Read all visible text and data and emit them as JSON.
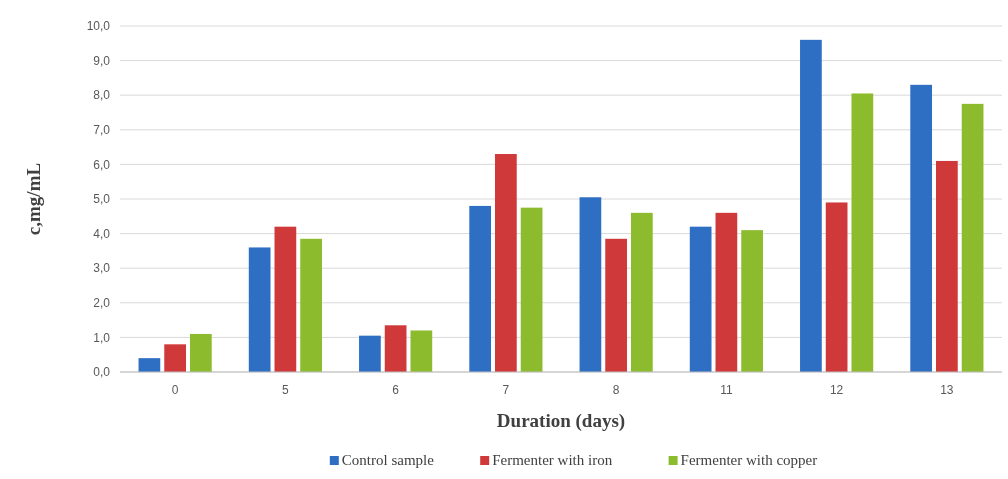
{
  "chart_data": {
    "type": "bar",
    "xlabel": "Duration (days)",
    "ylabel": "c,mg/mL",
    "categories": [
      "0",
      "5",
      "6",
      "7",
      "8",
      "11",
      "12",
      "13"
    ],
    "series": [
      {
        "name": "Control sample",
        "color": "#2e6fc4",
        "values": [
          0.4,
          3.6,
          1.05,
          4.8,
          5.05,
          4.2,
          9.6,
          8.3
        ]
      },
      {
        "name": "Fermenter with iron",
        "color": "#d0393a",
        "values": [
          0.8,
          4.2,
          1.35,
          6.3,
          3.85,
          4.6,
          4.9,
          6.1
        ]
      },
      {
        "name": "Fermenter with copper",
        "color": "#8dbb2e",
        "values": [
          1.1,
          3.85,
          1.2,
          4.75,
          4.6,
          4.1,
          8.05,
          7.75
        ]
      }
    ],
    "ylim": [
      0,
      10
    ],
    "yticks": [
      {
        "value": 0,
        "label": "0,0"
      },
      {
        "value": 1,
        "label": "1,0"
      },
      {
        "value": 2,
        "label": "2,0"
      },
      {
        "value": 3,
        "label": "3,0"
      },
      {
        "value": 4,
        "label": "4,0"
      },
      {
        "value": 5,
        "label": "5,0"
      },
      {
        "value": 6,
        "label": "6,0"
      },
      {
        "value": 7,
        "label": "7,0"
      },
      {
        "value": 8,
        "label": "8,0"
      },
      {
        "value": 9,
        "label": "9,0"
      },
      {
        "value": 10,
        "label": "10,0"
      }
    ],
    "grid": "y",
    "legend": "bottom"
  }
}
